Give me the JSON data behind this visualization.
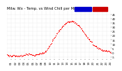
{
  "title": "Milw. Wx - Temp. vs Wind Chill per Min.",
  "background_color": "#ffffff",
  "plot_bg_color": "#ffffff",
  "dot_color": "#ff0000",
  "dot_size": 0.8,
  "legend_outdoor_color": "#0000cc",
  "legend_windchill_color": "#cc0000",
  "grid_color": "#cccccc",
  "y_ticks": [
    -5,
    0,
    5,
    10,
    15,
    20,
    25,
    30,
    35,
    40,
    45
  ],
  "ylim": [
    -8,
    50
  ],
  "xlim": [
    0,
    1440
  ],
  "title_fontsize": 3.8,
  "tick_fontsize": 2.8,
  "x_tick_labels": [
    "01",
    "02",
    "03",
    "04",
    "05",
    "06",
    "07",
    "08",
    "09",
    "10",
    "11",
    "12",
    "13",
    "14",
    "15",
    "16",
    "17",
    "18",
    "19",
    "20",
    "21",
    "22",
    "23",
    "24"
  ],
  "curve_data_x": [
    0,
    60,
    120,
    180,
    240,
    270,
    300,
    360,
    420,
    480,
    510,
    540,
    570,
    600,
    630,
    660,
    690,
    720,
    750,
    780,
    810,
    840,
    870,
    900,
    930,
    960,
    990,
    1020,
    1050,
    1080,
    1110,
    1140,
    1170,
    1200,
    1230,
    1260,
    1290,
    1320,
    1380,
    1440
  ],
  "curve_data_y": [
    -3,
    -4,
    -4,
    -4,
    -3,
    -2,
    -2,
    -3,
    -2,
    -1,
    0,
    2,
    5,
    9,
    14,
    18,
    22,
    26,
    29,
    32,
    34,
    36,
    37,
    37,
    36,
    34,
    32,
    29,
    26,
    22,
    18,
    15,
    12,
    9,
    7,
    5,
    4,
    3,
    2,
    1
  ],
  "sparse_interval": 8
}
